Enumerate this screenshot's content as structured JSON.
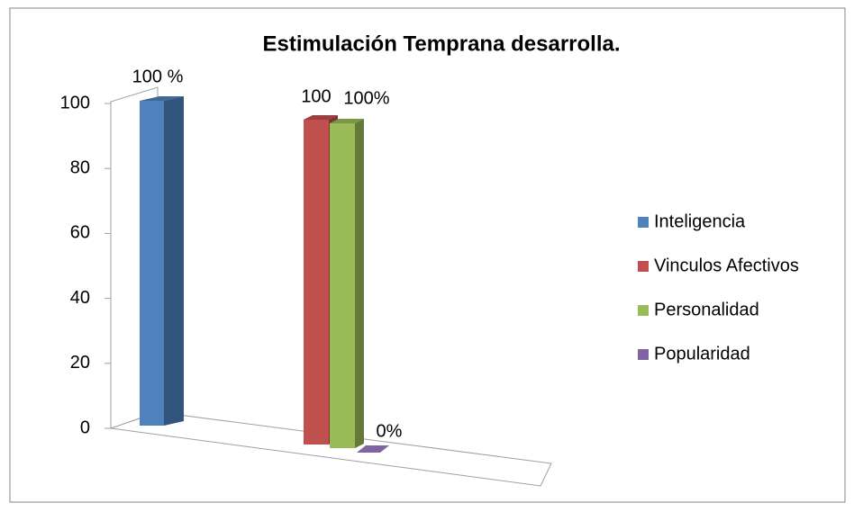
{
  "chart_data": {
    "type": "bar3d",
    "title": "Estimulación Temprana desarrolla.",
    "series": [
      {
        "name": "Inteligencia",
        "color": "#4f81bd",
        "values": [
          100
        ],
        "value_labels": [
          "100 %"
        ]
      },
      {
        "name": "Vinculos Afectivos",
        "color": "#c0504d",
        "values": [
          100
        ],
        "value_labels": [
          "100"
        ]
      },
      {
        "name": "Personalidad",
        "color": "#9bbb59",
        "values": [
          100
        ],
        "value_labels": [
          "100%"
        ]
      },
      {
        "name": "Popularidad",
        "color": "#8064a2",
        "values": [
          0
        ],
        "value_labels": [
          "0%"
        ]
      }
    ],
    "ylim": [
      0,
      100
    ],
    "yticks": [
      0,
      20,
      40,
      60,
      80,
      100
    ],
    "legend": "right"
  }
}
